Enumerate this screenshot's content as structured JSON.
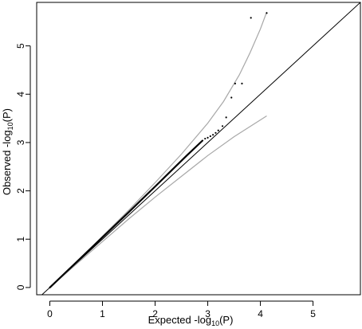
{
  "chart_data": {
    "type": "scatter",
    "title": "",
    "xlabel": {
      "prefix": "Expected -log",
      "sub": "10",
      "suffix": "(P)"
    },
    "ylabel": {
      "prefix": "Observed -log",
      "sub": "10",
      "suffix": "(P)"
    },
    "xlim": [
      -0.25,
      5.9
    ],
    "ylim": [
      -0.15,
      5.9
    ],
    "xticks": [
      0,
      1,
      2,
      3,
      4,
      5
    ],
    "yticks": [
      0,
      1,
      2,
      3,
      4,
      5
    ],
    "xtick_labels": [
      "0",
      "1",
      "2",
      "3",
      "4",
      "5"
    ],
    "ytick_labels": [
      "0",
      "1",
      "2",
      "3",
      "4",
      "5"
    ],
    "grid": false,
    "legend": "none",
    "colors": {
      "points": "#000000",
      "reference_line": "#000000",
      "confidence_band": "#a8a8a8"
    },
    "reference_line": {
      "x": [
        -0.25,
        5.9
      ],
      "y": [
        -0.25,
        5.9
      ]
    },
    "confidence_upper": {
      "x": [
        0,
        0.5,
        1.0,
        1.5,
        2.0,
        2.5,
        3.0,
        3.3,
        3.6,
        3.8,
        4.0,
        4.12
      ],
      "y": [
        0,
        0.52,
        1.06,
        1.6,
        2.17,
        2.76,
        3.4,
        3.85,
        4.4,
        4.85,
        5.35,
        5.7
      ]
    },
    "confidence_lower": {
      "x": [
        0,
        0.5,
        1.0,
        1.5,
        2.0,
        2.5,
        3.0,
        3.5,
        4.12
      ],
      "y": [
        0,
        0.48,
        0.95,
        1.42,
        1.87,
        2.3,
        2.73,
        3.12,
        3.55
      ]
    },
    "observed_curve": {
      "x": [
        0,
        0.5,
        1.0,
        1.5,
        2.0,
        2.3,
        2.6,
        2.9
      ],
      "y": [
        0,
        0.52,
        1.04,
        1.56,
        2.09,
        2.41,
        2.73,
        3.04
      ]
    },
    "points": {
      "x": [
        2.95,
        3.0,
        3.05,
        3.1,
        3.15,
        3.2,
        3.28,
        3.35,
        3.45,
        3.52,
        3.65,
        3.82,
        4.12
      ],
      "y": [
        3.08,
        3.1,
        3.13,
        3.16,
        3.2,
        3.25,
        3.34,
        3.52,
        3.93,
        4.22,
        4.22,
        5.58,
        5.68
      ]
    }
  }
}
